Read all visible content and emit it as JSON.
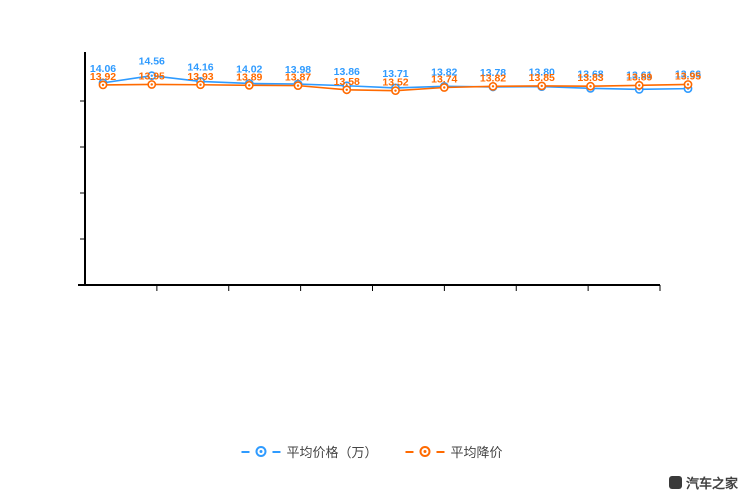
{
  "chart_data": {
    "type": "line",
    "categories": [
      "",
      "",
      "",
      "",
      "",
      "",
      "",
      "",
      "",
      "",
      "",
      "",
      ""
    ],
    "series": [
      {
        "name": "平均价格（万）",
        "color": "#2f9bff",
        "values": [
          14.06,
          14.56,
          14.16,
          14.02,
          13.98,
          13.86,
          13.71,
          13.82,
          13.78,
          13.8,
          13.68,
          13.61,
          13.66
        ]
      },
      {
        "name": "平均降价",
        "color": "#ff6a00",
        "values": [
          13.92,
          13.95,
          13.93,
          13.89,
          13.87,
          13.58,
          13.52,
          13.74,
          13.82,
          13.85,
          13.83,
          13.89,
          13.95
        ]
      }
    ],
    "title": "",
    "xlabel": "",
    "ylabel": "",
    "ylim": [
      0,
      16
    ],
    "y_tick_count": 4,
    "x_tick_count": 8,
    "grid": false,
    "legend_position": "bottom",
    "axis_color": "#000000",
    "label_decimals": 2
  },
  "legend": {
    "items": [
      {
        "label": "平均价格（万）",
        "color": "#2f9bff"
      },
      {
        "label": "平均降价",
        "color": "#ff6a00"
      }
    ]
  },
  "watermark": {
    "text": "汽车之家"
  }
}
